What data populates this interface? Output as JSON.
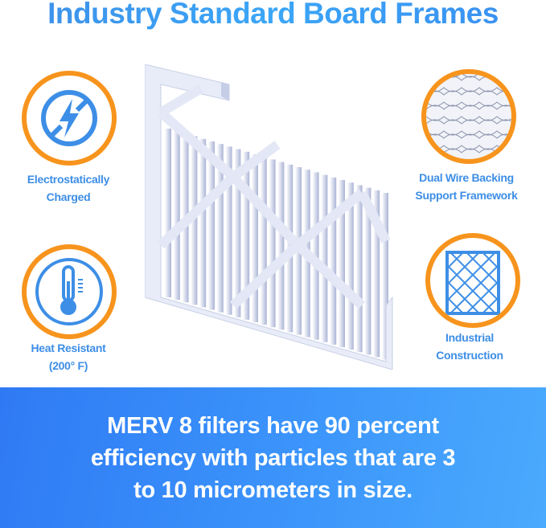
{
  "title": "Industry Standard Board Frames",
  "features": [
    {
      "label_line1": "Electrostatically",
      "label_line2": "Charged",
      "icon": "no-electricity-icon"
    },
    {
      "label_line1": "Heat Resistant",
      "label_line2": "(200° F)",
      "icon": "thermometer-icon"
    },
    {
      "label_line1": "Dual Wire Backing",
      "label_line2": "Support Framework",
      "icon": "wire-mesh-icon"
    },
    {
      "label_line1": "Industrial",
      "label_line2": "Construction",
      "icon": "grid-frame-icon"
    }
  ],
  "banner": {
    "line1": "MERV 8 filters have 90 percent",
    "line2": "efficiency with particles that are 3",
    "line3": "to 10 micrometers in size."
  },
  "colors": {
    "accent_blue": "#3d8ee6",
    "ring_orange": "#f7941d",
    "banner_blue": "#3c95fb"
  }
}
